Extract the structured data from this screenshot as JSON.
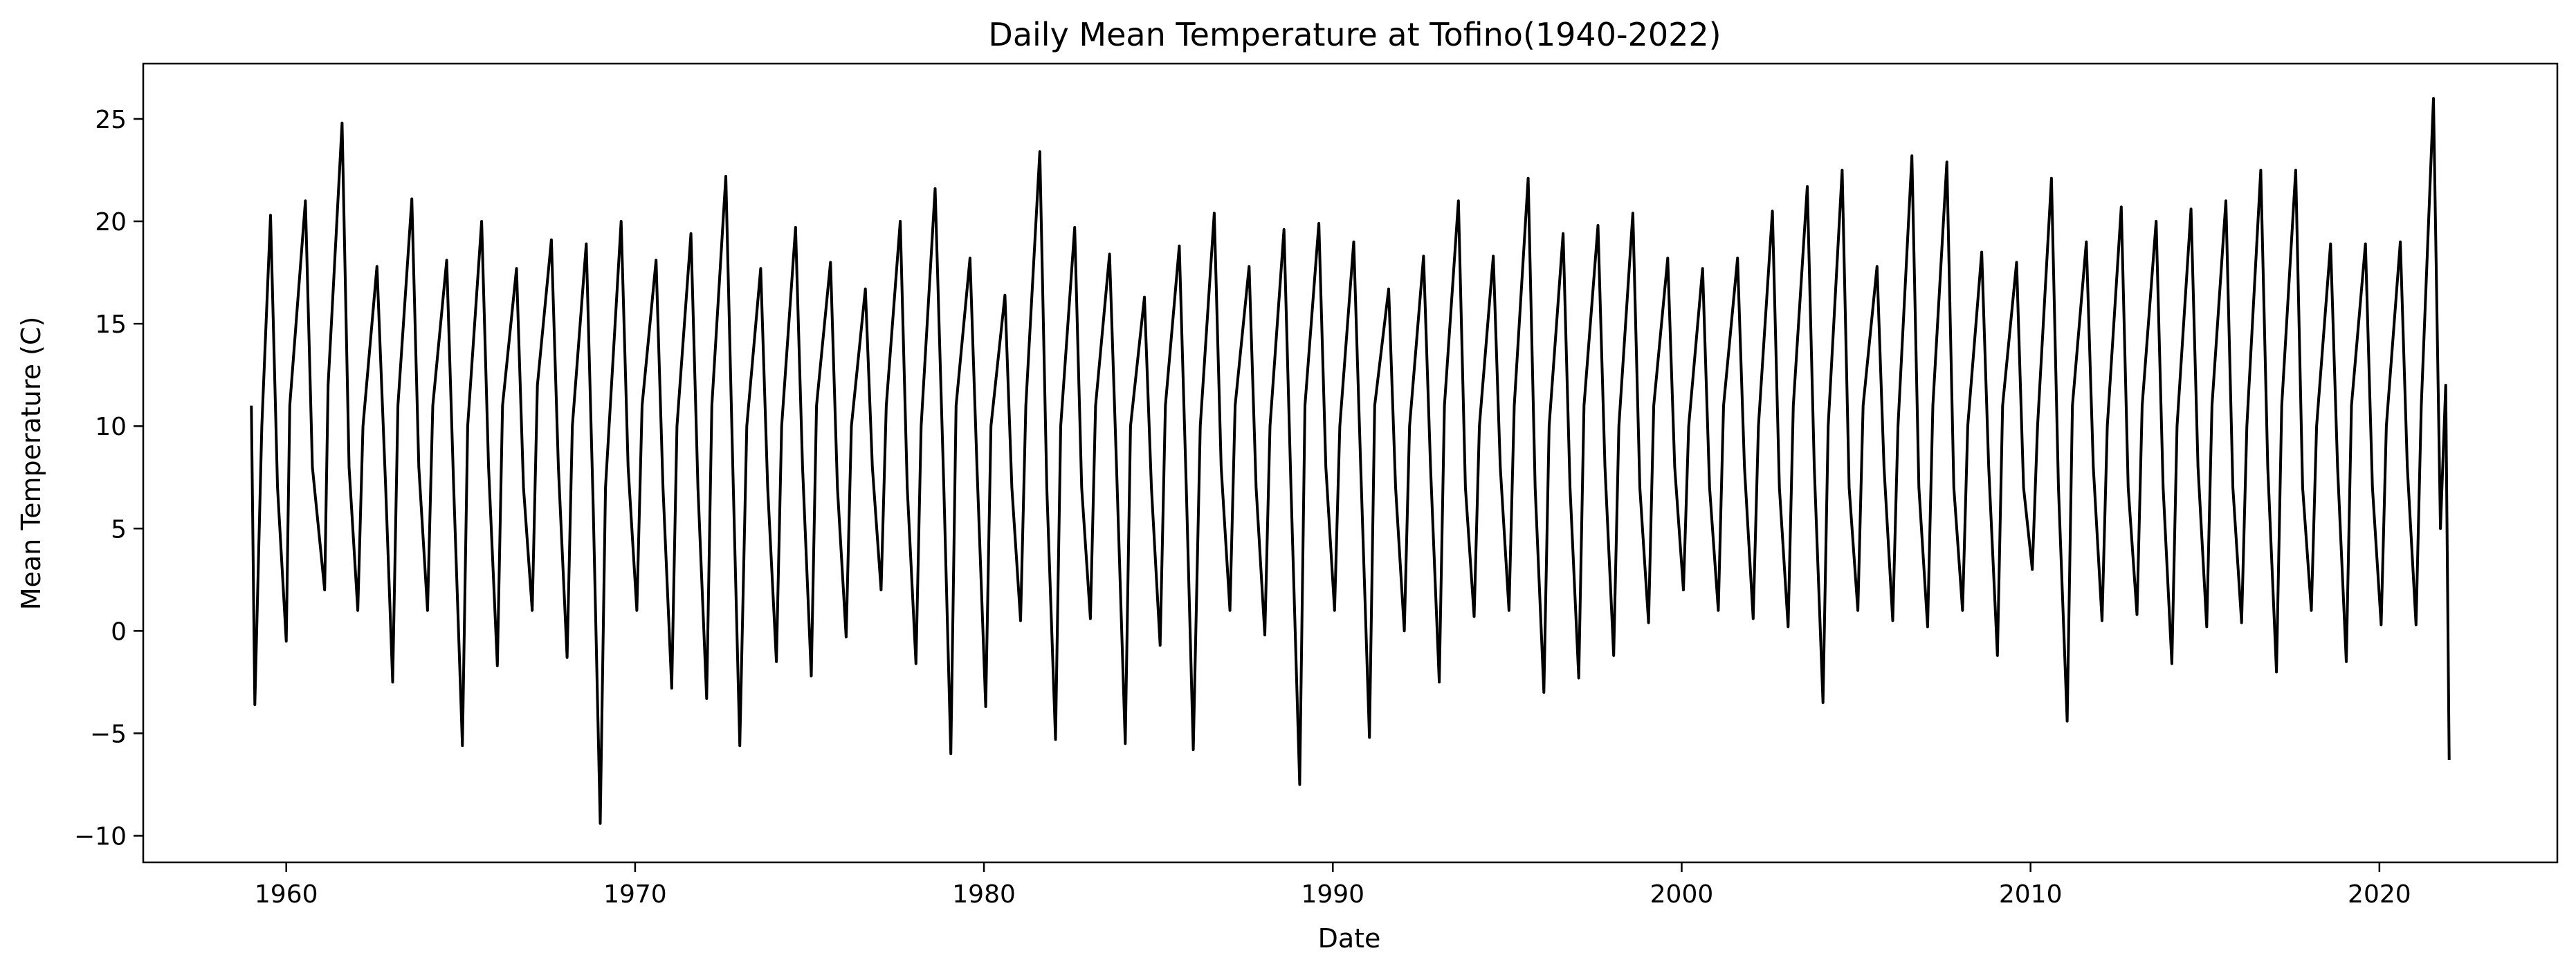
{
  "chart_data": {
    "type": "line",
    "title": "Daily Mean Temperature at Tofino(1940-2022)",
    "xlabel": "Date",
    "ylabel": "Mean Temperature (C)",
    "xlim": [
      1955.9,
      2025.1
    ],
    "ylim": [
      -11.3,
      27.7
    ],
    "x_ticks": [
      1960,
      1970,
      1980,
      1990,
      2000,
      2010,
      2020
    ],
    "x_tick_labels": [
      "1960",
      "1970",
      "1980",
      "1990",
      "2000",
      "2010",
      "2020"
    ],
    "y_ticks": [
      -10,
      -5,
      0,
      5,
      10,
      15,
      20,
      25
    ],
    "y_tick_labels": [
      "−10",
      "−5",
      "0",
      "5",
      "10",
      "15",
      "20",
      "25"
    ],
    "grid": false,
    "legend": "none",
    "line_color": "#000000",
    "series": [
      {
        "x": [
          1959.0,
          1959.1,
          1959.3,
          1959.55,
          1959.75,
          1960.0,
          1960.1,
          1960.55,
          1960.75,
          1961.1,
          1961.2,
          1961.6,
          1961.8,
          1962.05,
          1962.2,
          1962.6,
          1962.85,
          1963.05,
          1963.2,
          1963.6,
          1963.8,
          1964.05,
          1964.2,
          1964.6,
          1964.8,
          1965.05,
          1965.2,
          1965.6,
          1965.8,
          1966.05,
          1966.2,
          1966.6,
          1966.8,
          1967.05,
          1967.2,
          1967.6,
          1967.8,
          1968.05,
          1968.2,
          1968.6,
          1968.8,
          1969.0,
          1969.15,
          1969.6,
          1969.8,
          1970.05,
          1970.2,
          1970.6,
          1970.8,
          1971.05,
          1971.2,
          1971.6,
          1971.8,
          1972.05,
          1972.2,
          1972.6,
          1972.8,
          1973.0,
          1973.2,
          1973.6,
          1973.8,
          1974.05,
          1974.2,
          1974.6,
          1974.8,
          1975.05,
          1975.2,
          1975.6,
          1975.8,
          1976.05,
          1976.2,
          1976.6,
          1976.8,
          1977.05,
          1977.2,
          1977.6,
          1977.8,
          1978.05,
          1978.2,
          1978.6,
          1978.85,
          1979.05,
          1979.2,
          1979.6,
          1979.8,
          1980.05,
          1980.2,
          1980.6,
          1980.8,
          1981.05,
          1981.2,
          1981.6,
          1981.8,
          1982.05,
          1982.2,
          1982.6,
          1982.8,
          1983.05,
          1983.2,
          1983.6,
          1983.8,
          1984.05,
          1984.2,
          1984.6,
          1984.8,
          1985.05,
          1985.2,
          1985.6,
          1985.8,
          1986.0,
          1986.2,
          1986.6,
          1986.8,
          1987.05,
          1987.2,
          1987.6,
          1987.8,
          1988.05,
          1988.2,
          1988.6,
          1988.8,
          1989.05,
          1989.2,
          1989.6,
          1989.8,
          1990.05,
          1990.2,
          1990.6,
          1990.8,
          1991.05,
          1991.2,
          1991.6,
          1991.8,
          1992.05,
          1992.2,
          1992.6,
          1992.8,
          1993.05,
          1993.2,
          1993.6,
          1993.8,
          1994.05,
          1994.2,
          1994.6,
          1994.8,
          1995.05,
          1995.2,
          1995.6,
          1995.8,
          1996.05,
          1996.2,
          1996.6,
          1996.8,
          1997.05,
          1997.2,
          1997.6,
          1997.8,
          1998.05,
          1998.2,
          1998.6,
          1998.8,
          1999.05,
          1999.2,
          1999.6,
          1999.8,
          2000.05,
          2000.2,
          2000.6,
          2000.8,
          2001.05,
          2001.2,
          2001.6,
          2001.8,
          2002.05,
          2002.2,
          2002.6,
          2002.8,
          2003.05,
          2003.2,
          2003.6,
          2003.8,
          2004.05,
          2004.2,
          2004.6,
          2004.8,
          2005.05,
          2005.2,
          2005.6,
          2005.8,
          2006.05,
          2006.2,
          2006.6,
          2006.8,
          2007.05,
          2007.2,
          2007.6,
          2007.8,
          2008.05,
          2008.2,
          2008.6,
          2008.8,
          2009.05,
          2009.2,
          2009.6,
          2009.8,
          2010.05,
          2010.2,
          2010.6,
          2010.8,
          2011.05,
          2011.2,
          2011.6,
          2011.8,
          2012.05,
          2012.2,
          2012.6,
          2012.8,
          2013.05,
          2013.2,
          2013.6,
          2013.8,
          2014.05,
          2014.2,
          2014.6,
          2014.8,
          2015.05,
          2015.2,
          2015.6,
          2015.8,
          2016.05,
          2016.2,
          2016.6,
          2016.8,
          2017.05,
          2017.2,
          2017.6,
          2017.8,
          2018.05,
          2018.2,
          2018.6,
          2018.8,
          2019.05,
          2019.2,
          2019.6,
          2019.8,
          2020.05,
          2020.2,
          2020.6,
          2020.8,
          2021.05,
          2021.2,
          2021.55,
          2021.75,
          2021.9,
          2022.0
        ],
        "y": [
          11.0,
          -3.6,
          10.0,
          20.3,
          7.0,
          -0.5,
          11.0,
          21.0,
          8.0,
          2.0,
          12.0,
          24.8,
          8.0,
          1.0,
          10.0,
          17.8,
          7.0,
          -2.5,
          11.0,
          21.1,
          8.0,
          1.0,
          11.0,
          18.1,
          7.0,
          -5.6,
          10.0,
          20.0,
          8.0,
          -1.7,
          11.0,
          17.7,
          7.0,
          1.0,
          12.0,
          19.1,
          8.0,
          -1.3,
          10.0,
          18.9,
          6.0,
          -9.4,
          7.0,
          20.0,
          8.0,
          1.0,
          11.0,
          18.1,
          7.0,
          -2.8,
          10.0,
          19.4,
          7.0,
          -3.3,
          11.0,
          22.2,
          8.0,
          -5.6,
          10.0,
          17.7,
          7.0,
          -1.5,
          10.0,
          19.7,
          8.0,
          -2.2,
          11.0,
          18.0,
          7.0,
          -0.3,
          10.0,
          16.7,
          8.0,
          2.0,
          11.0,
          20.0,
          7.0,
          -1.6,
          10.0,
          21.6,
          7.0,
          -6.0,
          11.0,
          18.2,
          8.0,
          -3.7,
          10.0,
          16.4,
          7.0,
          0.5,
          11.0,
          23.4,
          7.0,
          -5.3,
          10.0,
          19.7,
          7.0,
          0.6,
          11.0,
          18.4,
          8.0,
          -5.5,
          10.0,
          16.3,
          7.0,
          -0.7,
          11.0,
          18.8,
          7.0,
          -5.8,
          10.0,
          20.4,
          8.0,
          1.0,
          11.0,
          17.8,
          7.0,
          -0.2,
          10.0,
          19.6,
          7.0,
          -7.5,
          11.0,
          19.9,
          8.0,
          1.0,
          10.0,
          19.0,
          8.0,
          -5.2,
          11.0,
          16.7,
          7.0,
          0.0,
          10.0,
          18.3,
          8.0,
          -2.5,
          11.0,
          21.0,
          7.0,
          0.7,
          10.0,
          18.3,
          8.0,
          1.0,
          11.0,
          22.1,
          7.0,
          -3.0,
          10.0,
          19.4,
          7.0,
          -2.3,
          11.0,
          19.8,
          8.0,
          -1.2,
          10.0,
          20.4,
          7.0,
          0.4,
          11.0,
          18.2,
          8.0,
          2.0,
          10.0,
          17.7,
          7.0,
          1.0,
          11.0,
          18.2,
          8.0,
          0.6,
          10.0,
          20.5,
          7.0,
          0.2,
          11.0,
          21.7,
          8.0,
          -3.5,
          10.0,
          22.5,
          7.0,
          1.0,
          11.0,
          17.8,
          8.0,
          0.5,
          10.0,
          23.2,
          7.0,
          0.2,
          11.0,
          22.9,
          7.0,
          1.0,
          10.0,
          18.5,
          8.0,
          -1.2,
          11.0,
          18.0,
          7.0,
          3.0,
          10.0,
          22.1,
          7.0,
          -4.4,
          11.0,
          19.0,
          8.0,
          0.5,
          10.0,
          20.7,
          7.0,
          0.8,
          11.0,
          20.0,
          7.0,
          -1.6,
          10.0,
          20.6,
          8.0,
          0.2,
          11.0,
          21.0,
          7.0,
          0.4,
          10.0,
          22.5,
          8.0,
          -2.0,
          11.0,
          22.5,
          7.0,
          1.0,
          10.0,
          18.9,
          8.0,
          -1.5,
          11.0,
          18.9,
          7.0,
          0.3,
          10.0,
          19.0,
          8.0,
          0.3,
          11.0,
          26.0,
          5.0,
          12.0,
          -6.3
        ]
      }
    ]
  }
}
